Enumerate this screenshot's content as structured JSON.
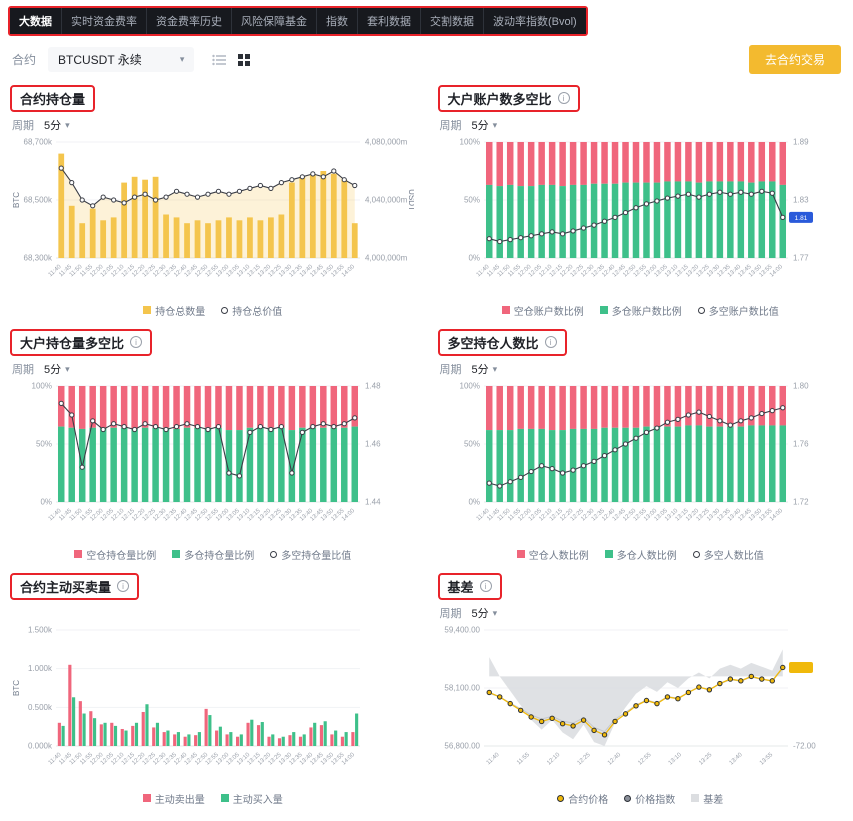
{
  "nav": {
    "items": [
      {
        "label": "大数据",
        "active": true
      },
      {
        "label": "实时资金费率",
        "active": false
      },
      {
        "label": "资金费率历史",
        "active": false
      },
      {
        "label": "风险保障基金",
        "active": false
      },
      {
        "label": "指数",
        "active": false
      },
      {
        "label": "套利数据",
        "active": false
      },
      {
        "label": "交割数据",
        "active": false
      },
      {
        "label": "波动率指数(Bvol)",
        "active": false
      }
    ]
  },
  "toolbar": {
    "contract_label": "合约",
    "contract_value": "BTCUSDT 永续",
    "trade_button": "去合约交易"
  },
  "glyphs": {
    "caret_down": "▾",
    "info": "i"
  },
  "time_labels_5m": [
    "11:40",
    "11:45",
    "11:50",
    "11:55",
    "12:00",
    "12:05",
    "12:10",
    "12:15",
    "12:20",
    "12:25",
    "12:30",
    "12:35",
    "12:40",
    "12:45",
    "12:50",
    "12:55",
    "13:00",
    "13:05",
    "13:10",
    "13:15",
    "13:20",
    "13:25",
    "13:30",
    "13:35",
    "13:40",
    "13:45",
    "13:50",
    "13:55",
    "14:00"
  ],
  "colors": {
    "accent_yellow": "#F3BA2F",
    "oi_bar": "#F4C54D",
    "oi_area": "rgba(244,197,77,0.22)",
    "short_red": "#F0667C",
    "long_green": "#3EC08A",
    "line_dark": "#3A3D46",
    "badge_blue": "#2A5ADA",
    "price_yellow": "#F0B90B",
    "index_gray": "#C5C8CD",
    "basis_gray": "#DCDEE1",
    "annotation_red": "#E8232A",
    "axis_text": "#9AA0AA",
    "grid_line": "#F1F2F4"
  },
  "charts": [
    {
      "id": "open-interest",
      "title": "合约持仓量",
      "has_info": false,
      "period_label": "周期",
      "period_value": "5分",
      "type": "bar-line",
      "y_left": {
        "unit": "BTC",
        "ticks": [
          "68,700k",
          "68,500k",
          "68,300k"
        ],
        "min": 68300,
        "max": 68700
      },
      "y_right": {
        "unit": "USDT",
        "ticks": [
          "4,080,000m",
          "4,040,000m",
          "4,000,000m"
        ],
        "min": 4000000,
        "max": 4080000
      },
      "bars": [
        68660,
        68480,
        68420,
        68470,
        68430,
        68440,
        68560,
        68580,
        68570,
        68580,
        68450,
        68440,
        68420,
        68430,
        68420,
        68430,
        68440,
        68430,
        68440,
        68430,
        68440,
        68450,
        68560,
        68580,
        68590,
        68600,
        68590,
        68570,
        68420
      ],
      "line": [
        4062000,
        4052000,
        4040000,
        4036000,
        4042000,
        4040000,
        4038000,
        4042000,
        4044000,
        4040000,
        4042000,
        4046000,
        4044000,
        4042000,
        4044000,
        4046000,
        4044000,
        4046000,
        4048000,
        4050000,
        4048000,
        4052000,
        4054000,
        4056000,
        4058000,
        4056000,
        4060000,
        4054000,
        4050000
      ],
      "legend": [
        {
          "label": "持仓总数量",
          "marker": "square",
          "color": "#F4C54D"
        },
        {
          "label": "持仓总价值",
          "marker": "ring",
          "color": "#3A3D46"
        }
      ]
    },
    {
      "id": "top-trader-account-ratio",
      "title": "大户账户数多空比",
      "has_info": true,
      "period_label": "周期",
      "period_value": "5分",
      "type": "stacked-ratio",
      "y_left": {
        "ticks": [
          "100%",
          "50%",
          "0%"
        ],
        "min": 0,
        "max": 100
      },
      "y_right": {
        "ticks": [
          "1.89",
          "1.83",
          "1.77"
        ],
        "min": 1.77,
        "max": 1.89
      },
      "long_pct": [
        63,
        62,
        63,
        62,
        62,
        63,
        63,
        62,
        63,
        63,
        64,
        64,
        64,
        65,
        65,
        65,
        65,
        66,
        66,
        66,
        65,
        66,
        66,
        66,
        66,
        65,
        66,
        66,
        63
      ],
      "ratio": [
        1.79,
        1.787,
        1.789,
        1.791,
        1.793,
        1.795,
        1.797,
        1.795,
        1.798,
        1.801,
        1.804,
        1.808,
        1.812,
        1.817,
        1.822,
        1.826,
        1.829,
        1.832,
        1.834,
        1.836,
        1.833,
        1.836,
        1.838,
        1.836,
        1.838,
        1.836,
        1.839,
        1.837,
        1.812
      ],
      "badge": {
        "color": "#2A5ADA",
        "label": "1.81"
      },
      "legend": [
        {
          "label": "空仓账户数比例",
          "marker": "square",
          "color": "#F0667C"
        },
        {
          "label": "多仓账户数比例",
          "marker": "square",
          "color": "#3EC08A"
        },
        {
          "label": "多空账户数比值",
          "marker": "ring",
          "color": "#3A3D46"
        }
      ]
    },
    {
      "id": "top-trader-position-ratio",
      "title": "大户持仓量多空比",
      "has_info": true,
      "period_label": "周期",
      "period_value": "5分",
      "type": "stacked-ratio",
      "y_left": {
        "ticks": [
          "100%",
          "50%",
          "0%"
        ],
        "min": 0,
        "max": 100
      },
      "y_right": {
        "ticks": [
          "1.48",
          "1.46",
          "1.44"
        ],
        "min": 1.44,
        "max": 1.48
      },
      "long_pct": [
        65,
        64,
        63,
        64,
        64,
        64,
        64,
        63,
        64,
        64,
        64,
        63,
        64,
        64,
        64,
        64,
        62,
        62,
        64,
        64,
        64,
        64,
        62,
        64,
        64,
        64,
        64,
        64,
        65
      ],
      "ratio": [
        1.474,
        1.47,
        1.452,
        1.468,
        1.465,
        1.467,
        1.466,
        1.465,
        1.467,
        1.466,
        1.465,
        1.466,
        1.467,
        1.466,
        1.465,
        1.466,
        1.45,
        1.449,
        1.464,
        1.466,
        1.465,
        1.466,
        1.45,
        1.464,
        1.466,
        1.467,
        1.466,
        1.467,
        1.469
      ],
      "legend": [
        {
          "label": "空仓持仓量比例",
          "marker": "square",
          "color": "#F0667C"
        },
        {
          "label": "多仓持仓量比例",
          "marker": "square",
          "color": "#3EC08A"
        },
        {
          "label": "多空持仓量比值",
          "marker": "ring",
          "color": "#3A3D46"
        }
      ]
    },
    {
      "id": "long-short-people-ratio",
      "title": "多空持仓人数比",
      "has_info": true,
      "period_label": "周期",
      "period_value": "5分",
      "type": "stacked-ratio",
      "y_left": {
        "ticks": [
          "100%",
          "50%",
          "0%"
        ],
        "min": 0,
        "max": 100
      },
      "y_right": {
        "ticks": [
          "1.80",
          "1.76",
          "1.72"
        ],
        "min": 1.72,
        "max": 1.8
      },
      "long_pct": [
        62,
        62,
        62,
        63,
        63,
        63,
        62,
        62,
        63,
        63,
        63,
        64,
        64,
        64,
        64,
        65,
        65,
        65,
        65,
        66,
        66,
        65,
        65,
        65,
        65,
        66,
        66,
        66,
        66
      ],
      "ratio": [
        1.733,
        1.731,
        1.734,
        1.737,
        1.741,
        1.745,
        1.743,
        1.74,
        1.742,
        1.745,
        1.748,
        1.752,
        1.756,
        1.76,
        1.764,
        1.768,
        1.771,
        1.775,
        1.777,
        1.78,
        1.782,
        1.779,
        1.776,
        1.773,
        1.776,
        1.778,
        1.781,
        1.783,
        1.785
      ],
      "legend": [
        {
          "label": "空仓人数比例",
          "marker": "square",
          "color": "#F0667C"
        },
        {
          "label": "多仓人数比例",
          "marker": "square",
          "color": "#3EC08A"
        },
        {
          "label": "多空人数比值",
          "marker": "ring",
          "color": "#3A3D46"
        }
      ]
    },
    {
      "id": "taker-buy-sell-volume",
      "title": "合约主动买卖量",
      "has_info": true,
      "period_label": "",
      "period_value": "",
      "type": "paired-bars",
      "y_left": {
        "unit": "BTC",
        "ticks": [
          "1.500k",
          "1.000k",
          "0.500k",
          "0.000k"
        ],
        "min": 0,
        "max": 1.5
      },
      "sell": [
        0.3,
        1.05,
        0.58,
        0.45,
        0.28,
        0.3,
        0.22,
        0.26,
        0.44,
        0.24,
        0.18,
        0.15,
        0.12,
        0.14,
        0.48,
        0.2,
        0.15,
        0.12,
        0.3,
        0.27,
        0.12,
        0.1,
        0.14,
        0.12,
        0.24,
        0.27,
        0.15,
        0.12,
        0.18
      ],
      "buy": [
        0.26,
        0.63,
        0.42,
        0.36,
        0.3,
        0.26,
        0.2,
        0.3,
        0.54,
        0.3,
        0.2,
        0.18,
        0.15,
        0.18,
        0.4,
        0.25,
        0.18,
        0.15,
        0.34,
        0.31,
        0.15,
        0.12,
        0.18,
        0.15,
        0.3,
        0.32,
        0.2,
        0.18,
        0.42
      ],
      "legend": [
        {
          "label": "主动卖出量",
          "marker": "square",
          "color": "#F0667C"
        },
        {
          "label": "主动买入量",
          "marker": "square",
          "color": "#3EC08A"
        }
      ]
    },
    {
      "id": "basis",
      "title": "基差",
      "has_info": true,
      "period_label": "周期",
      "period_value": "5分",
      "type": "basis",
      "y_left": {
        "ticks": [
          "59,400.00",
          "58,100.00",
          "56,800.00"
        ],
        "min": 56800,
        "max": 59400
      },
      "y_right": {
        "ticks": [
          "-72.00"
        ],
        "min": -72,
        "max": 48
      },
      "x_labels": [
        "11:40",
        "11:55",
        "12:10",
        "12:25",
        "12:40",
        "12:55",
        "13:10",
        "13:25",
        "13:40",
        "13:55"
      ],
      "price": [
        58000,
        57900,
        57750,
        57600,
        57450,
        57350,
        57420,
        57300,
        57250,
        57380,
        57150,
        57050,
        57350,
        57520,
        57700,
        57820,
        57750,
        57900,
        57860,
        58000,
        58120,
        58060,
        58200,
        58300,
        58260,
        58360,
        58300,
        58260,
        58560
      ],
      "index_price": [
        57980,
        57900,
        57765,
        57630,
        57495,
        57405,
        57465,
        57358,
        57315,
        57430,
        57218,
        57122,
        57398,
        57552,
        57718,
        57830,
        57766,
        57906,
        57872,
        58002,
        58116,
        58062,
        58192,
        58288,
        58252,
        58346,
        58290,
        58254,
        58532
      ],
      "basis_values": [
        20,
        0,
        -15,
        -30,
        -45,
        -55,
        -45,
        -58,
        -65,
        -50,
        -68,
        -72,
        -48,
        -32,
        -18,
        -10,
        -16,
        -6,
        -12,
        -2,
        4,
        -2,
        8,
        12,
        8,
        14,
        10,
        6,
        28
      ],
      "badge": {
        "color": "#F0B90B",
        "label": ""
      },
      "legend": [
        {
          "label": "合约价格",
          "marker": "dot",
          "color": "#F0B90B"
        },
        {
          "label": "价格指数",
          "marker": "dot",
          "color": "#8A8F99"
        },
        {
          "label": "基差",
          "marker": "square",
          "color": "#DCDEE1"
        }
      ]
    }
  ]
}
